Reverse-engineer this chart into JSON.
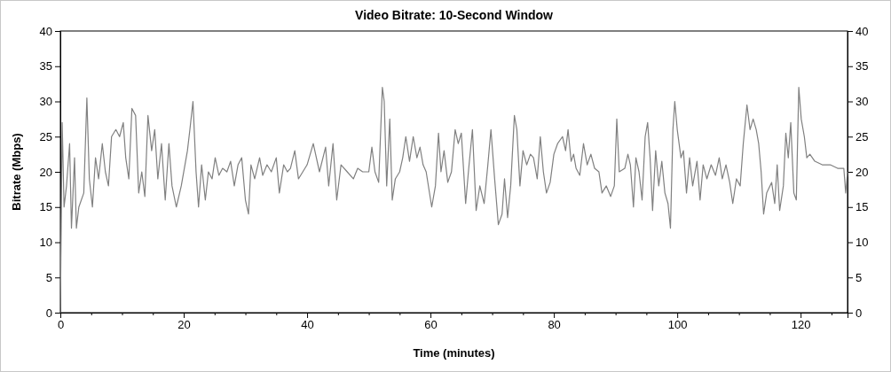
{
  "chart_data": {
    "type": "line",
    "title": "Video Bitrate: 10-Second Window",
    "xlabel": "Time (minutes)",
    "ylabel": "Bitrate (Mbps)",
    "xlim": [
      0,
      127.6
    ],
    "ylim": [
      0,
      40
    ],
    "y2lim": [
      0,
      40
    ],
    "xticks": [
      0,
      {
        "value": 5,
        "label": null
      },
      {
        "value": 10,
        "label": null
      },
      {
        "value": 15,
        "label": null
      },
      20,
      {
        "value": 25,
        "label": null
      },
      {
        "value": 30,
        "label": null
      },
      {
        "value": 35,
        "label": null
      },
      40,
      {
        "value": 45,
        "label": null
      },
      {
        "value": 50,
        "label": null
      },
      {
        "value": 55,
        "label": null
      },
      60,
      {
        "value": 65,
        "label": null
      },
      {
        "value": 70,
        "label": null
      },
      {
        "value": 75,
        "label": null
      },
      80,
      {
        "value": 85,
        "label": null
      },
      {
        "value": 90,
        "label": null
      },
      {
        "value": 95,
        "label": null
      },
      100,
      {
        "value": 105,
        "label": null
      },
      {
        "value": 110,
        "label": null
      },
      {
        "value": 115,
        "label": null
      },
      120,
      {
        "value": 125,
        "label": null
      }
    ],
    "yticks": [
      0,
      5,
      10,
      15,
      20,
      25,
      30,
      35,
      40
    ],
    "y2ticks": [
      0,
      5,
      10,
      15,
      20,
      25,
      30,
      35,
      40
    ],
    "grid": false,
    "marker": "none",
    "line_style": "solid",
    "series": [
      {
        "color": "#808080",
        "x": [
          0,
          0.3,
          0.6,
          1,
          1.5,
          1.8,
          2.3,
          2.6,
          3,
          3.8,
          4.3,
          4.7,
          5.2,
          5.7,
          6.2,
          6.8,
          7.3,
          7.8,
          8.3,
          9,
          9.6,
          10.2,
          10.6,
          11.1,
          11.6,
          12.2,
          12.7,
          13.2,
          13.7,
          14.2,
          14.8,
          15.3,
          15.8,
          16.4,
          17,
          17.6,
          18.1,
          18.8,
          19.6,
          20.2,
          20.6,
          21,
          21.5,
          22,
          22.4,
          22.9,
          23.5,
          24,
          24.6,
          25.1,
          25.7,
          26.3,
          27,
          27.6,
          28.2,
          28.8,
          29.4,
          30,
          30.5,
          30.9,
          31.5,
          32.3,
          32.8,
          33.5,
          34.2,
          35,
          35.5,
          36.2,
          36.8,
          37.3,
          38,
          38.6,
          40,
          41,
          42,
          43,
          43.5,
          44.2,
          44.8,
          45.5,
          46.5,
          47.5,
          48.2,
          49,
          50,
          50.5,
          51,
          51.6,
          52.2,
          52.5,
          52.9,
          53.4,
          53.8,
          54.3,
          55,
          55.5,
          56,
          56.6,
          57.2,
          57.8,
          58.3,
          58.8,
          59.3,
          60.2,
          60.8,
          61.3,
          61.7,
          62.2,
          62.8,
          63.4,
          64,
          64.5,
          65,
          65.7,
          66.2,
          66.8,
          67.4,
          68,
          68.7,
          69.3,
          69.8,
          70.4,
          71,
          71.6,
          72,
          72.5,
          73,
          73.6,
          74,
          74.5,
          75,
          75.6,
          76.2,
          76.7,
          77.3,
          77.8,
          78.3,
          78.8,
          79.4,
          80,
          80.6,
          81.4,
          81.9,
          82.3,
          82.8,
          83.2,
          83.6,
          84.2,
          84.8,
          85.4,
          86,
          86.6,
          87.3,
          87.8,
          88.5,
          89.2,
          89.8,
          90.2,
          90.6,
          91.5,
          92,
          92.4,
          92.9,
          93.3,
          93.8,
          94.3,
          94.8,
          95.2,
          95.6,
          96,
          96.5,
          97,
          97.5,
          98,
          98.5,
          98.9,
          99.3,
          99.6,
          100,
          100.6,
          101,
          101.5,
          102,
          102.5,
          103.2,
          103.7,
          104.2,
          104.8,
          105.5,
          106.2,
          106.8,
          107.3,
          107.9,
          108.5,
          109,
          109.6,
          110.2,
          110.7,
          111.3,
          111.8,
          112.3,
          112.8,
          113.2,
          113.6,
          114,
          114.5,
          115.3,
          115.8,
          116.2,
          116.6,
          117.2,
          117.6,
          118,
          118.4,
          118.9,
          119.3,
          119.7,
          120.1,
          120.6,
          121,
          121.5,
          122.3,
          123.5,
          124.8,
          126,
          127,
          127.3,
          127.6
        ],
        "values": [
          0,
          27,
          15,
          18,
          24,
          12,
          22,
          12,
          15,
          17,
          30.5,
          19,
          15,
          22,
          19,
          24,
          20,
          18,
          25,
          26,
          25,
          27,
          22,
          19,
          29,
          28,
          17,
          20,
          16.5,
          28,
          23,
          26,
          19,
          24,
          16,
          24,
          18,
          15,
          18,
          21,
          23,
          26,
          30,
          20,
          15,
          21,
          16,
          20,
          19,
          22,
          19.5,
          20.5,
          20,
          21.5,
          18,
          21,
          22,
          16,
          14,
          21,
          19,
          22,
          19.5,
          21,
          20,
          22,
          17,
          21,
          20,
          20.5,
          23,
          19,
          21,
          24,
          20,
          23.5,
          18,
          24,
          16,
          21,
          20,
          19,
          20.5,
          20,
          20,
          23.5,
          20,
          18.5,
          32,
          30,
          18,
          27.5,
          16,
          19,
          20,
          22,
          25,
          21.5,
          25,
          22,
          23.5,
          21,
          20,
          15,
          18,
          25.5,
          20,
          23,
          18.5,
          20,
          26,
          24,
          25.5,
          15.5,
          20.5,
          26,
          14.5,
          18,
          15.5,
          21,
          26,
          19,
          12.5,
          14,
          19,
          13.5,
          18,
          28,
          26,
          18,
          23,
          21,
          22.5,
          22,
          19,
          25,
          20,
          17,
          18.5,
          22.5,
          24,
          25,
          23,
          26,
          21.5,
          22.5,
          20.5,
          19.5,
          24,
          21,
          22.5,
          20.5,
          20,
          17,
          18,
          16.5,
          18,
          27.5,
          20,
          20.5,
          22.5,
          21,
          15,
          22,
          20,
          16,
          25,
          27,
          22,
          14.5,
          23,
          18,
          21.5,
          17,
          15.5,
          12,
          26,
          30,
          26,
          22,
          23,
          17,
          22,
          18,
          21.5,
          16,
          21,
          19,
          21,
          19.5,
          22,
          19,
          21,
          18.5,
          15.5,
          19,
          18,
          24,
          29.5,
          26,
          27.5,
          26,
          24,
          20,
          14,
          17,
          18.5,
          15.5,
          21,
          14.5,
          18,
          25.5,
          22,
          27,
          17,
          16,
          32,
          27.5,
          25,
          22,
          22.5,
          21.5,
          21,
          21,
          20.5,
          20.5,
          17,
          20
        ]
      }
    ]
  }
}
